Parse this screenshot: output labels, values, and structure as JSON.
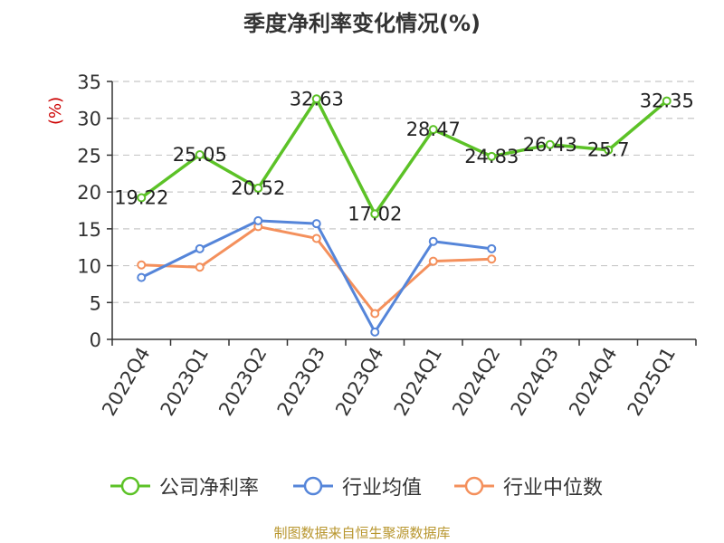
{
  "title": "季度净利率变化情况(%)",
  "y_unit": "(%)",
  "source": "制图数据来自恒生聚源数据库",
  "chart_data": {
    "type": "line",
    "categories": [
      "2022Q4",
      "2023Q1",
      "2023Q2",
      "2023Q3",
      "2023Q4",
      "2024Q1",
      "2024Q2",
      "2024Q3",
      "2024Q4",
      "2025Q1"
    ],
    "ylim": [
      0,
      35
    ],
    "yticks": [
      0,
      5,
      10,
      15,
      20,
      25,
      30,
      35
    ],
    "grid": true,
    "legend_position": "bottom",
    "series": [
      {
        "name": "公司净利率",
        "color": "#5cc227",
        "show_labels": true,
        "values": [
          19.22,
          25.05,
          20.52,
          32.63,
          17.02,
          28.47,
          24.83,
          26.43,
          25.7,
          32.35
        ],
        "labels": [
          "19.22",
          "25.05",
          "20.52",
          "32.63",
          "17.02",
          "28.47",
          "24.83",
          "26.43",
          "25.7",
          "32.35"
        ]
      },
      {
        "name": "行业均值",
        "color": "#5585d9",
        "show_labels": false,
        "values": [
          8.4,
          12.3,
          16.1,
          15.7,
          1.0,
          13.3,
          12.3,
          null,
          null,
          null
        ]
      },
      {
        "name": "行业中位数",
        "color": "#f4905c",
        "show_labels": false,
        "values": [
          10.1,
          9.8,
          15.3,
          13.7,
          3.5,
          10.6,
          10.9,
          null,
          null,
          null
        ]
      }
    ]
  }
}
